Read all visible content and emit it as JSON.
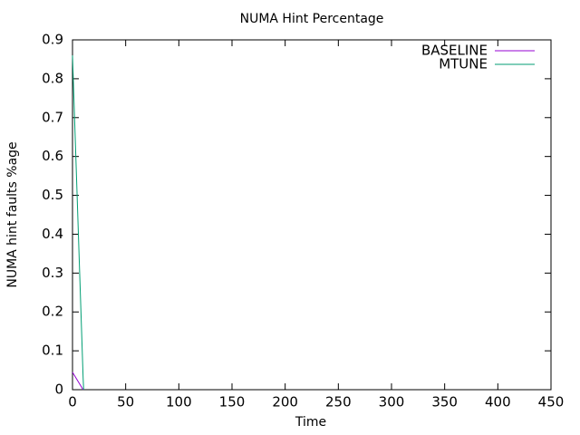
{
  "chart_data": {
    "type": "line",
    "title": "NUMA Hint Percentage",
    "x_label": "Time",
    "y_label": "NUMA hint faults %age",
    "series": [
      {
        "name": "BASELINE",
        "color": "#9400d3",
        "x": [
          0,
          10
        ],
        "values": [
          0.045,
          0
        ]
      },
      {
        "name": "MTUNE",
        "color": "#009e73",
        "x": [
          0,
          10,
          10.5
        ],
        "values": [
          0.86,
          0.03,
          0
        ]
      }
    ],
    "xlim": [
      0,
      450
    ],
    "xticks": [
      0,
      50,
      100,
      150,
      200,
      250,
      300,
      350,
      400,
      450
    ],
    "ylim": [
      0,
      0.9
    ],
    "yticks": [
      0,
      0.1,
      0.2,
      0.3,
      0.4,
      0.5,
      0.6,
      0.7,
      0.8,
      0.9
    ],
    "legend": "top right"
  }
}
